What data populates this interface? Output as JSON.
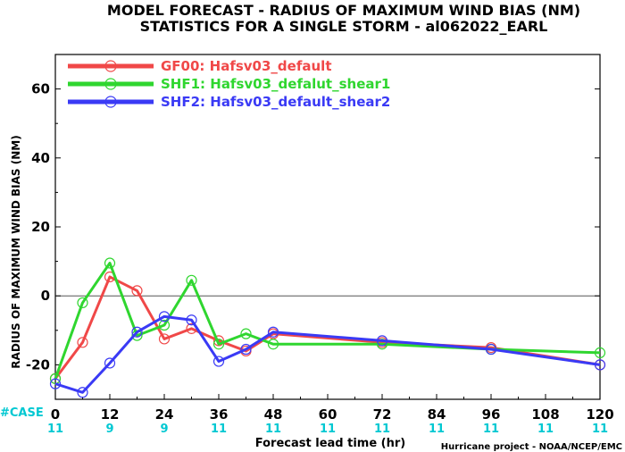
{
  "title_line1": "MODEL FORECAST - RADIUS OF MAXIMUM WIND BIAS (NM)",
  "title_line2": "STATISTICS FOR A SINGLE STORM - al062022_EARL",
  "credit": "Hurricane project - NOAA/NCEP/EMC",
  "case_label": "#CASE",
  "chart_data": {
    "type": "line",
    "xlabel": "Forecast lead time (hr)",
    "ylabel": "RADIUS OF MAXIMUM WIND BIAS (NM)",
    "xlim": [
      0,
      120
    ],
    "ylim": [
      -30,
      70
    ],
    "x_ticks": [
      0,
      12,
      24,
      36,
      48,
      60,
      72,
      84,
      96,
      108,
      120
    ],
    "y_ticks": [
      -20,
      0,
      20,
      40,
      60
    ],
    "reference_line_y": 0,
    "grid": false,
    "legend_position": "top-left",
    "case_counts": [
      {
        "x": 0,
        "n": "11"
      },
      {
        "x": 12,
        "n": "9"
      },
      {
        "x": 24,
        "n": "9"
      },
      {
        "x": 36,
        "n": "11"
      },
      {
        "x": 48,
        "n": "11"
      },
      {
        "x": 60,
        "n": "11"
      },
      {
        "x": 72,
        "n": "11"
      },
      {
        "x": 84,
        "n": "11"
      },
      {
        "x": 96,
        "n": "11"
      },
      {
        "x": 108,
        "n": "11"
      },
      {
        "x": 120,
        "n": "11"
      }
    ],
    "series": [
      {
        "name": "GF00: Hafsv03_default",
        "color": "#f04848",
        "x": [
          0,
          6,
          12,
          18,
          24,
          30,
          36,
          42,
          48,
          72,
          96,
          120
        ],
        "y": [
          -24,
          -13.5,
          5.5,
          1.5,
          -12.5,
          -9.5,
          -13,
          -16,
          -11,
          -13.5,
          -15,
          -20
        ]
      },
      {
        "name": "SHF1: Hafsv03_defalut_shear1",
        "color": "#2fd62f",
        "x": [
          0,
          6,
          12,
          18,
          24,
          30,
          36,
          42,
          48,
          72,
          96,
          120
        ],
        "y": [
          -24,
          -2,
          9.5,
          -11.5,
          -8.5,
          4.5,
          -14,
          -11,
          -14,
          -14,
          -15.5,
          -16.5
        ]
      },
      {
        "name": "SHF2: Hafsv03_default_shear2",
        "color": "#3a3af5",
        "x": [
          0,
          6,
          12,
          18,
          24,
          30,
          36,
          42,
          48,
          72,
          96,
          120
        ],
        "y": [
          -25.5,
          -28,
          -19.5,
          -10.5,
          -6,
          -7,
          -19,
          -15.5,
          -10.5,
          -13,
          -15.5,
          -20
        ]
      }
    ]
  }
}
